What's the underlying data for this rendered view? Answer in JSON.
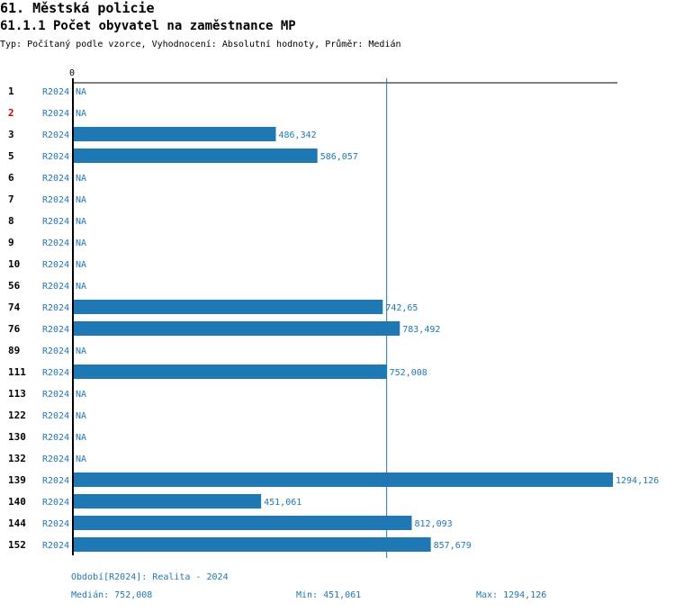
{
  "header": {
    "title": "61. Městská policie",
    "subtitle": "61.1.1 Počet obyvatel na zaměstnance MP",
    "meta": "Typ: Počítaný podle vzorce, Vyhodnocení: Absolutní hodnoty, Průměr: Medián"
  },
  "chart_data": {
    "type": "bar",
    "orientation": "horizontal",
    "axis_zero_label": "0",
    "series_label": "R2024",
    "na_label": "NA",
    "highlight_category": "2",
    "xlim": [
      0,
      1294.126
    ],
    "median_line": 752.008,
    "categories": [
      "1",
      "2",
      "3",
      "5",
      "6",
      "7",
      "8",
      "9",
      "10",
      "56",
      "74",
      "76",
      "89",
      "111",
      "113",
      "122",
      "130",
      "132",
      "139",
      "140",
      "144",
      "152"
    ],
    "values": [
      null,
      null,
      486.342,
      586.057,
      null,
      null,
      null,
      null,
      null,
      null,
      742.65,
      783.492,
      null,
      752.008,
      null,
      null,
      null,
      null,
      1294.126,
      451.061,
      812.093,
      857.679
    ],
    "value_labels": [
      "NA",
      "NA",
      "486,342",
      "586,057",
      "NA",
      "NA",
      "NA",
      "NA",
      "NA",
      "NA",
      "742,65",
      "783,492",
      "NA",
      "752,008",
      "NA",
      "NA",
      "NA",
      "NA",
      "1294,126",
      "451,061",
      "812,093",
      "857,679"
    ],
    "colors": {
      "bar": "#1f77b4",
      "highlight": "#cc0000",
      "text": "#1f77b4"
    }
  },
  "footer": {
    "period": "Období[R2024]: Realita - 2024",
    "median": "Medián: 752,008",
    "min": "Min: 451,061",
    "max": "Max: 1294,126"
  }
}
